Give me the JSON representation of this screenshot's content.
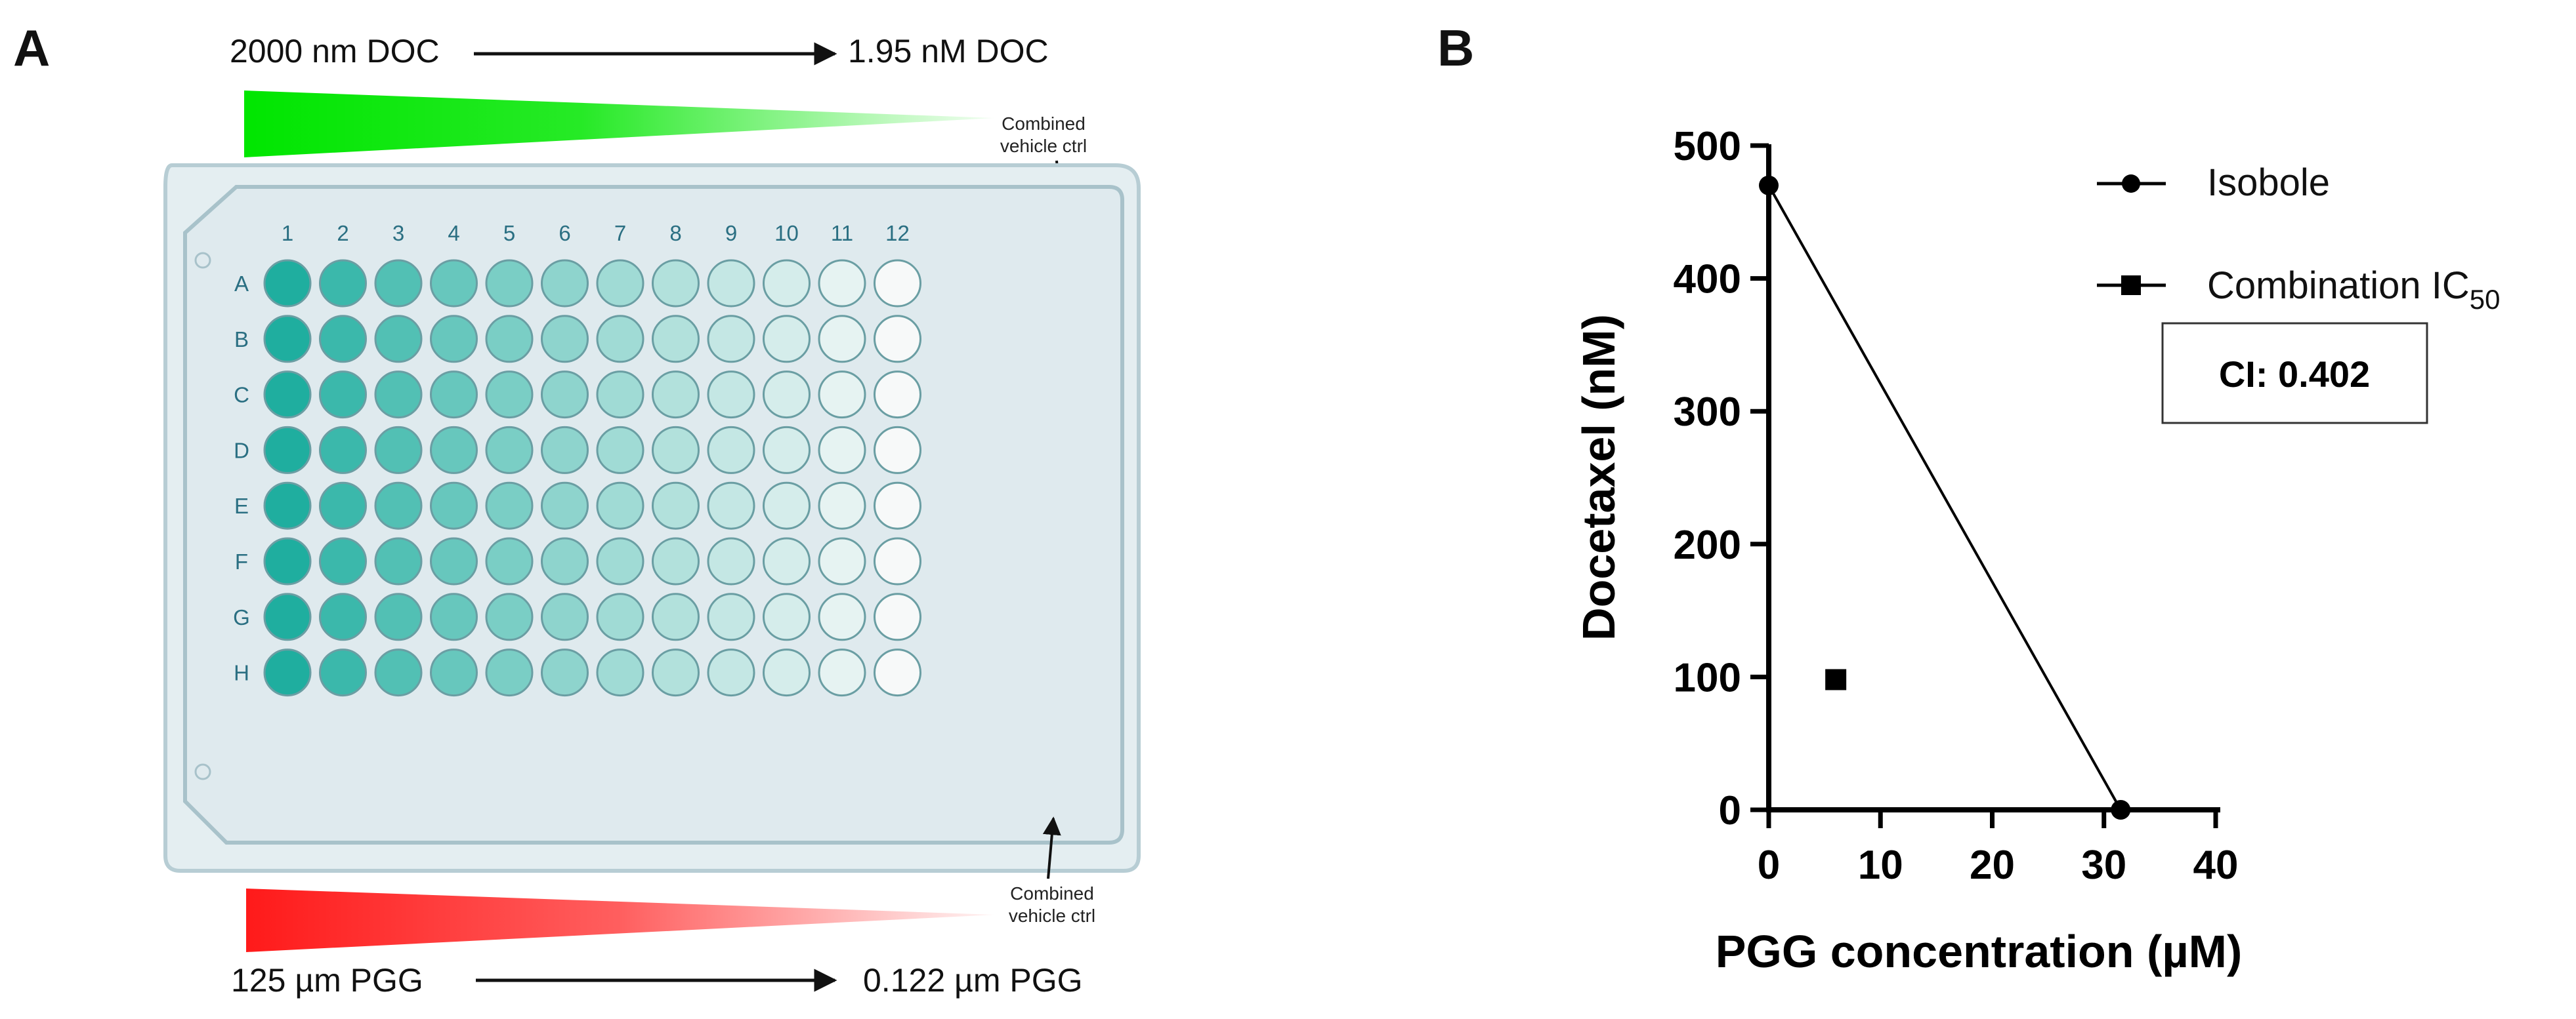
{
  "panel_a": {
    "label": "A",
    "top_left_text": "2000 nm DOC",
    "top_right_text": "1.95 nM DOC",
    "bottom_left_text": "125 µm PGG",
    "bottom_right_text": "0.122 µm PGG",
    "vehicle_ctrl_top": [
      "Combined",
      "vehicle ctrl"
    ],
    "vehicle_ctrl_bottom": [
      "Combined",
      "vehicle ctrl"
    ],
    "columns": [
      "1",
      "2",
      "3",
      "4",
      "5",
      "6",
      "7",
      "8",
      "9",
      "10",
      "11",
      "12"
    ],
    "rows": [
      "A",
      "B",
      "C",
      "D",
      "E",
      "F",
      "G",
      "H"
    ],
    "colors": {
      "doc_gradient": "#00e600",
      "pgg_gradient": "#ff1a1a",
      "plate_fill": "#dde8ec",
      "plate_border": "#a9c3cb",
      "label_color": "#2a6f82",
      "well_dark": "#1fae9f",
      "well_light": "#f7f9f9"
    }
  },
  "panel_b": {
    "label": "B",
    "ci_text": "CI: 0.402"
  },
  "chart_data": {
    "type": "scatter",
    "title": "",
    "xlabel": "PGG concentration (µM)",
    "ylabel": "Docetaxel  (nM)",
    "xlim": [
      0,
      40
    ],
    "ylim": [
      0,
      500
    ],
    "xticks": [
      0,
      10,
      20,
      30,
      40
    ],
    "yticks": [
      0,
      100,
      200,
      300,
      400,
      500
    ],
    "grid": false,
    "legend_position": "top-right",
    "series": [
      {
        "name": "Isobole",
        "name_main": "Combination IC",
        "marker": "circle",
        "line": true,
        "points": [
          {
            "x": 0,
            "y": 470
          },
          {
            "x": 31.5,
            "y": 0
          }
        ]
      },
      {
        "name": "Combination IC50",
        "name_main": "Combination IC",
        "name_sub": "50",
        "marker": "square",
        "line": false,
        "points": [
          {
            "x": 6,
            "y": 98
          }
        ]
      }
    ]
  }
}
